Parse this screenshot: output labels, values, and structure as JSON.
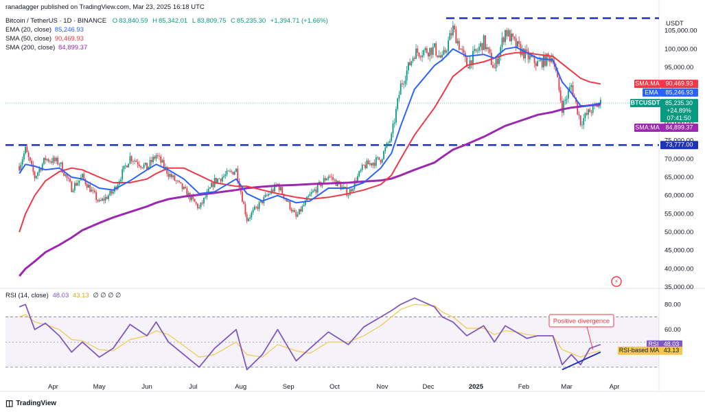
{
  "header": {
    "publisher": "ranadagger published on TradingView.com, Mar 23, 2025 16:18 UTC",
    "symbol": "Bitcoin / TetherUS · 1D · BINANCE",
    "ohlc": {
      "o": "83,840.59",
      "h": "85,342.01",
      "l": "83,809.75",
      "c": "85,235.30",
      "chg": "+1,394.71 (+1.66%)"
    },
    "indicators": [
      {
        "label": "EMA (20, close)",
        "value": "85,246.93",
        "color": "#2962ff"
      },
      {
        "label": "SMA (50, close)",
        "value": "90,469.93",
        "color": "#f23645"
      },
      {
        "label": "SMA (200, close)",
        "value": "84,899.37",
        "color": "#9c27b0"
      }
    ]
  },
  "currency": "USDT",
  "price_axis": {
    "ticks": [
      "105,000.00",
      "100,000.00",
      "95,000.00",
      "90,000.00",
      "85,000.00",
      "80,000.00",
      "75,000.00",
      "70,000.00",
      "65,000.00",
      "60,000.00",
      "55,000.00",
      "50,000.00",
      "45,000.00",
      "40,000.00",
      "35,000.00"
    ]
  },
  "labels": {
    "sma50": {
      "tag": "SMA:MA",
      "value": "90,469.93",
      "color": "#f23645"
    },
    "ema": {
      "tag": "EMA",
      "value": "85,246.93",
      "color": "#2962ff"
    },
    "last": {
      "tag": "BTCUSDT",
      "value": "85,235.30",
      "chg": "+24.89%",
      "time": "07:41:50",
      "color": "#089981"
    },
    "sma200": {
      "tag": "SMA:MA",
      "value": "84,899.37",
      "color": "#9c27b0"
    },
    "support": {
      "value": "73,777.00"
    }
  },
  "rsi": {
    "header": {
      "label": "RSI (14, close)",
      "v1": "48.03",
      "v2": "43.13",
      "rest": "∅ ∅ ∅ ∅"
    },
    "ticks": [
      "80.00",
      "60.00"
    ],
    "rsi_label": {
      "tag": "RSI",
      "value": "48.03",
      "color": "#7e57c2"
    },
    "ma_label": {
      "tag": "RSI-based MA",
      "value": "43.13",
      "color": "#f2c94c"
    },
    "annotation": "Positive divergence"
  },
  "x_axis": {
    "labels": [
      "Apr",
      "May",
      "Jun",
      "Jul",
      "Aug",
      "Sep",
      "Oct",
      "Nov",
      "Dec",
      "2025",
      "Feb",
      "Mar",
      "Apr"
    ]
  },
  "footer": {
    "brand": "TradingView"
  },
  "chart_data": {
    "type": "candlestick",
    "title": "Bitcoin / TetherUS · 1D · BINANCE",
    "ylim": [
      35000,
      110000
    ],
    "horizontal_levels": [
      108400,
      73777
    ],
    "price_series": {
      "name": "BTCUSDT",
      "x": [
        "2024-03-10",
        "2024-03-14",
        "2024-03-20",
        "2024-03-27",
        "2024-04-05",
        "2024-04-13",
        "2024-04-20",
        "2024-05-01",
        "2024-05-10",
        "2024-05-21",
        "2024-06-01",
        "2024-06-07",
        "2024-06-15",
        "2024-06-25",
        "2024-07-05",
        "2024-07-15",
        "2024-07-29",
        "2024-08-05",
        "2024-08-15",
        "2024-08-25",
        "2024-09-06",
        "2024-09-15",
        "2024-09-27",
        "2024-10-10",
        "2024-10-20",
        "2024-10-31",
        "2024-11-07",
        "2024-11-13",
        "2024-11-22",
        "2024-12-05",
        "2024-12-10",
        "2024-12-17",
        "2024-12-26",
        "2025-01-06",
        "2025-01-13",
        "2025-01-20",
        "2025-01-27",
        "2025-02-03",
        "2025-02-10",
        "2025-02-20",
        "2025-02-26",
        "2025-03-04",
        "2025-03-10",
        "2025-03-16",
        "2025-03-23"
      ],
      "values": [
        68000,
        72500,
        65000,
        70000,
        69000,
        62000,
        65000,
        58000,
        61000,
        70500,
        67500,
        71000,
        66000,
        61500,
        56500,
        64000,
        67000,
        53500,
        58500,
        63000,
        54000,
        60000,
        65500,
        60500,
        68000,
        70000,
        76000,
        90000,
        99000,
        100000,
        97000,
        105500,
        95500,
        102000,
        94500,
        105000,
        101000,
        98000,
        96000,
        98000,
        84000,
        90000,
        80000,
        83000,
        85235
      ]
    },
    "ema20": {
      "name": "EMA (20, close)",
      "values": [
        66000,
        68500,
        68000,
        67000,
        67500,
        65000,
        64500,
        62000,
        61500,
        64000,
        67000,
        68500,
        67000,
        64500,
        60500,
        61000,
        64500,
        60500,
        58500,
        60000,
        58000,
        58500,
        62000,
        62000,
        63500,
        67500,
        71500,
        79000,
        89000,
        95500,
        97000,
        100000,
        98000,
        98500,
        97500,
        100000,
        100500,
        99000,
        97500,
        97000,
        91000,
        88000,
        84500,
        84500,
        85247
      ]
    },
    "sma50": {
      "name": "SMA (50, close)",
      "values": [
        50000,
        55000,
        60000,
        64000,
        66500,
        67500,
        67000,
        65000,
        63500,
        63500,
        64500,
        66000,
        67500,
        67500,
        65500,
        63500,
        62500,
        62500,
        61500,
        60500,
        59500,
        59000,
        59500,
        60500,
        61500,
        63000,
        65500,
        70000,
        76500,
        84000,
        87500,
        92500,
        95500,
        96500,
        97500,
        98500,
        99000,
        99000,
        98500,
        98000,
        96000,
        94000,
        92000,
        91000,
        90470
      ]
    },
    "sma200": {
      "name": "SMA (200, close)",
      "values": [
        38000,
        40000,
        42000,
        44500,
        46500,
        48500,
        50500,
        52500,
        54000,
        55500,
        57000,
        58000,
        59000,
        59700,
        60200,
        60700,
        61500,
        62000,
        62400,
        62700,
        62900,
        63100,
        63300,
        63500,
        63800,
        64100,
        64600,
        65500,
        67000,
        69000,
        70500,
        72500,
        74000,
        76000,
        77500,
        79000,
        80000,
        81000,
        82000,
        82800,
        83500,
        84000,
        84300,
        84600,
        84899
      ]
    },
    "rsi": {
      "name": "RSI (14, close)",
      "ylim": [
        20,
        90
      ],
      "levels": [
        70,
        30
      ],
      "values": [
        78,
        80,
        60,
        65,
        55,
        42,
        50,
        38,
        45,
        64,
        55,
        66,
        50,
        40,
        30,
        45,
        60,
        28,
        40,
        60,
        35,
        45,
        58,
        48,
        62,
        70,
        75,
        80,
        85,
        78,
        70,
        66,
        55,
        63,
        50,
        63,
        58,
        53,
        55,
        55,
        32,
        40,
        32,
        45,
        48.03
      ]
    },
    "rsi_ma": {
      "name": "RSI-based MA",
      "values": [
        70,
        72,
        66,
        64,
        60,
        52,
        51,
        44,
        43,
        52,
        55,
        59,
        56,
        47,
        38,
        40,
        50,
        40,
        38,
        48,
        43,
        41,
        50,
        50,
        55,
        63,
        70,
        76,
        80,
        79,
        74,
        70,
        61,
        61,
        56,
        59,
        58,
        56,
        55,
        55,
        44,
        41,
        38,
        41,
        43.13
      ]
    }
  }
}
